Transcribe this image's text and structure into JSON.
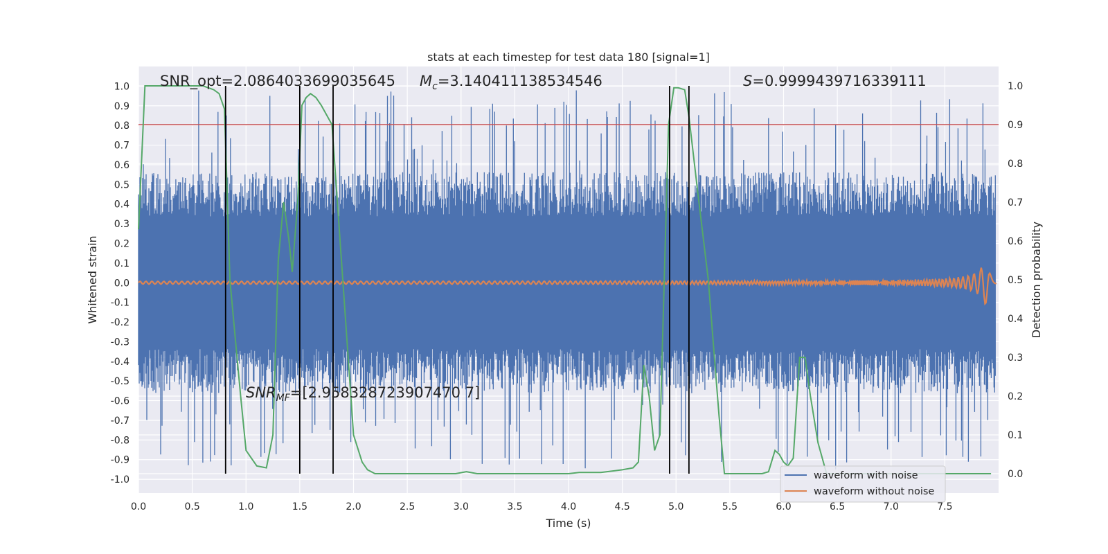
{
  "chart_data": {
    "type": "line",
    "title": "stats at each timestep for test data 180 [signal=1]",
    "xlabel": "Time (s)",
    "ylabel_left": "Whitened strain",
    "ylabel_right": "Detection probability",
    "xlim": [
      0.0,
      8.0
    ],
    "ylim_left": [
      -1.07,
      1.1
    ],
    "ylim_right": [
      -0.05,
      1.05
    ],
    "x_ticks": [
      "0.0",
      "0.5",
      "1.0",
      "1.5",
      "2.0",
      "2.5",
      "3.0",
      "3.5",
      "4.0",
      "4.5",
      "5.0",
      "5.5",
      "6.0",
      "6.5",
      "7.0",
      "7.5"
    ],
    "x_tick_values": [
      0,
      0.5,
      1,
      1.5,
      2,
      2.5,
      3,
      3.5,
      4,
      4.5,
      5,
      5.5,
      6,
      6.5,
      7,
      7.5
    ],
    "y_left_ticks": [
      "1.0",
      "0.9",
      "0.8",
      "0.7",
      "0.6",
      "0.5",
      "0.4",
      "0.3",
      "0.2",
      "0.1",
      "0.0",
      "-0.1",
      "-0.2",
      "-0.3",
      "-0.4",
      "-0.5",
      "-0.6",
      "-0.7",
      "-0.8",
      "-0.9",
      "-1.0"
    ],
    "y_left_tick_values": [
      1.0,
      0.9,
      0.8,
      0.7,
      0.6,
      0.5,
      0.4,
      0.3,
      0.2,
      0.1,
      0.0,
      -0.1,
      -0.2,
      -0.3,
      -0.4,
      -0.5,
      -0.6,
      -0.7,
      -0.8,
      -0.9,
      -1.0
    ],
    "y_right_ticks": [
      "1.0",
      "0.9",
      "0.8",
      "0.7",
      "0.6",
      "0.5",
      "0.4",
      "0.3",
      "0.2",
      "0.1",
      "0.0"
    ],
    "y_right_tick_values": [
      1.0,
      0.9,
      0.8,
      0.7,
      0.6,
      0.5,
      0.4,
      0.3,
      0.2,
      0.1,
      0.0
    ],
    "grid": true,
    "legend_placement": "lower-right",
    "colors": {
      "background": "#eaeaf2",
      "noise": "#4c72b0",
      "signal": "#dd8452",
      "probability": "#55a868",
      "threshold": "#c44e52",
      "boundary": "#000000"
    },
    "annotations": {
      "snr_opt": "SNR_opt=2.0864033699035645",
      "mc_symbol": "M",
      "mc_sub": "c",
      "mc_value": "=3.140411138534546",
      "s_symbol": "S",
      "s_value": "=0.9999439716339111",
      "snr_mf_symbol": "SNR",
      "snr_mf_sub": "MF",
      "snr_mf_value": "=[2.958328723907470 7]"
    },
    "threshold": 0.9,
    "boundaries": [
      0.81,
      1.5,
      1.81,
      4.94,
      5.12
    ],
    "series": [
      {
        "name": "waveform with noise",
        "kind": "noise_envelope",
        "amplitude_typical": 0.45,
        "peak_max": 1.0,
        "peak_min": -0.97
      },
      {
        "name": "waveform without noise",
        "kind": "chirp",
        "peak_time": 7.9,
        "peak_amplitude": 0.11
      },
      {
        "name": "",
        "axis": "right",
        "x": [
          0.0,
          0.06,
          0.2,
          0.4,
          0.6,
          0.7,
          0.75,
          0.8,
          0.85,
          0.9,
          0.95,
          1.0,
          1.05,
          1.1,
          1.19,
          1.25,
          1.3,
          1.35,
          1.4,
          1.43,
          1.48,
          1.52,
          1.56,
          1.6,
          1.65,
          1.7,
          1.8,
          1.9,
          2.0,
          2.08,
          2.13,
          2.2,
          2.5,
          2.8,
          2.95,
          3.05,
          3.15,
          3.5,
          3.8,
          4.0,
          4.1,
          4.3,
          4.5,
          4.6,
          4.65,
          4.7,
          4.75,
          4.8,
          4.85,
          4.93,
          4.98,
          5.02,
          5.08,
          5.12,
          5.2,
          5.3,
          5.4,
          5.45,
          5.6,
          5.8,
          5.86,
          5.92,
          5.96,
          6.0,
          6.04,
          6.09,
          6.15,
          6.2,
          6.25,
          6.32,
          6.4,
          6.6,
          6.8,
          7.0,
          7.2,
          7.4,
          7.6,
          7.8,
          7.93
        ],
        "y": [
          0.63,
          1.0,
          1.0,
          1.0,
          1.0,
          0.99,
          0.98,
          0.94,
          0.5,
          0.35,
          0.2,
          0.06,
          0.04,
          0.02,
          0.015,
          0.1,
          0.55,
          0.7,
          0.6,
          0.52,
          0.7,
          0.95,
          0.97,
          0.98,
          0.97,
          0.95,
          0.9,
          0.5,
          0.1,
          0.03,
          0.01,
          0.0,
          0.0,
          0.0,
          0.0,
          0.005,
          0.0,
          0.0,
          0.0,
          0.0,
          0.003,
          0.003,
          0.01,
          0.015,
          0.03,
          0.28,
          0.2,
          0.06,
          0.1,
          0.9,
          0.995,
          0.995,
          0.99,
          0.92,
          0.73,
          0.5,
          0.15,
          0.0,
          0.0,
          0.0,
          0.005,
          0.06,
          0.05,
          0.03,
          0.02,
          0.04,
          0.3,
          0.3,
          0.2,
          0.08,
          0.0,
          0.0,
          0.0,
          0.0,
          0.0,
          0.0,
          0.0,
          0.0,
          0.0
        ]
      }
    ]
  },
  "legend": {
    "noise_label": "waveform with noise",
    "signal_label": "waveform without noise"
  }
}
